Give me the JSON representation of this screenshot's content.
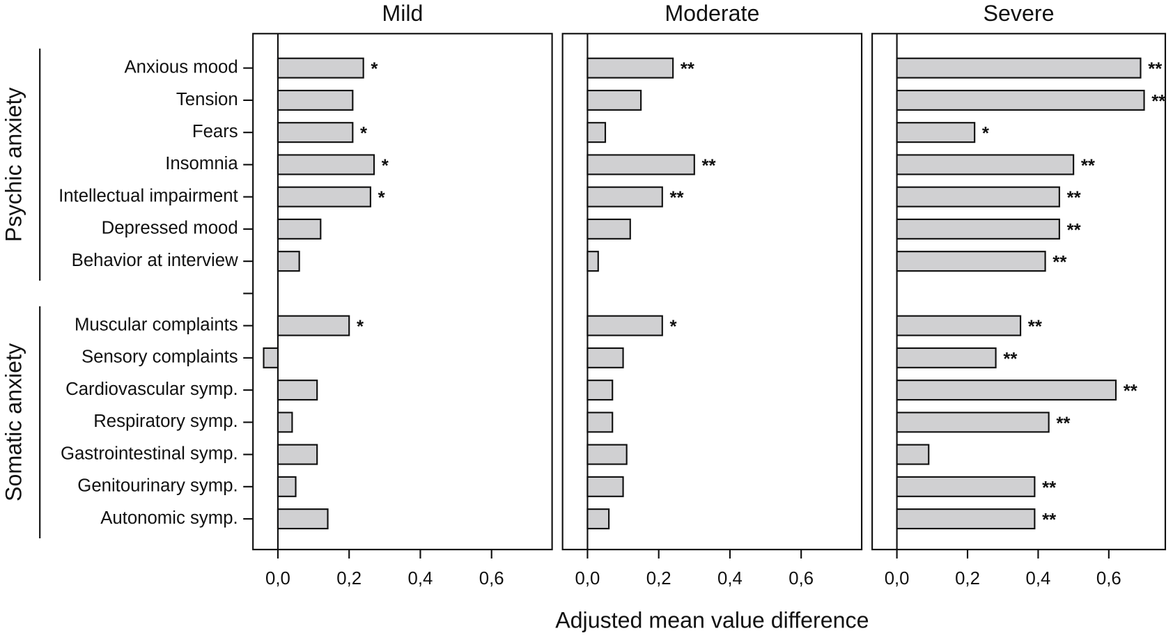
{
  "chart_data": [
    {
      "type": "hbar",
      "title": "Mild",
      "categories": [
        "Anxious mood",
        "Tension",
        "Fears",
        "Insomnia",
        "Intellectual impairment",
        "Depressed mood",
        "Behavior at interview",
        null,
        "Muscular complaints",
        "Sensory complaints",
        "Cardiovascular symp.",
        "Respiratory symp.",
        "Gastrointestinal symp.",
        "Genitourinary symp.",
        "Autonomic symp."
      ],
      "values": [
        0.24,
        0.21,
        0.21,
        0.27,
        0.26,
        0.12,
        0.06,
        null,
        0.2,
        -0.04,
        0.11,
        0.04,
        0.11,
        0.05,
        0.14
      ],
      "significance": [
        "*",
        null,
        "*",
        "*",
        "*",
        null,
        null,
        null,
        "*",
        null,
        null,
        null,
        null,
        null,
        null
      ],
      "color": "#d0d0d2",
      "xlim": [
        -0.07,
        0.77
      ],
      "xticks": [
        {
          "value": 0,
          "label": "0,0"
        },
        {
          "value": 0.2,
          "label": "0,2"
        },
        {
          "value": 0.4,
          "label": "0,4"
        },
        {
          "value": 0.6,
          "label": "0,6"
        }
      ]
    },
    {
      "type": "hbar",
      "title": "Moderate",
      "values": [
        0.24,
        0.15,
        0.05,
        0.3,
        0.21,
        0.12,
        0.03,
        null,
        0.21,
        0.1,
        0.07,
        0.07,
        0.11,
        0.1,
        0.06
      ],
      "significance": [
        "**",
        null,
        null,
        "**",
        "**",
        null,
        null,
        null,
        "*",
        null,
        null,
        null,
        null,
        null,
        null
      ],
      "color": "#d0d0d2",
      "xlim": [
        -0.07,
        0.77
      ],
      "xticks": [
        {
          "value": 0,
          "label": "0,0"
        },
        {
          "value": 0.2,
          "label": "0,2"
        },
        {
          "value": 0.4,
          "label": "0,4"
        },
        {
          "value": 0.6,
          "label": "0,6"
        }
      ]
    },
    {
      "type": "hbar",
      "title": "Severe",
      "values": [
        0.69,
        0.7,
        0.22,
        0.5,
        0.46,
        0.46,
        0.42,
        null,
        0.35,
        0.28,
        0.62,
        0.43,
        0.09,
        0.39,
        0.39
      ],
      "significance": [
        "**",
        "**",
        "*",
        "**",
        "**",
        "**",
        "**",
        null,
        "**",
        "**",
        "**",
        "**",
        null,
        "**",
        "**"
      ],
      "color": "#d0d0d2",
      "xlim": [
        -0.07,
        0.76
      ],
      "xticks": [
        {
          "value": 0,
          "label": "0,0"
        },
        {
          "value": 0.2,
          "label": "0,2"
        },
        {
          "value": 0.4,
          "label": "0,4"
        },
        {
          "value": 0.6,
          "label": "0,6"
        }
      ]
    }
  ],
  "xlabel": "Adjusted mean value difference",
  "groups": [
    "Psychic anxiety",
    "Somatic anxiety"
  ]
}
